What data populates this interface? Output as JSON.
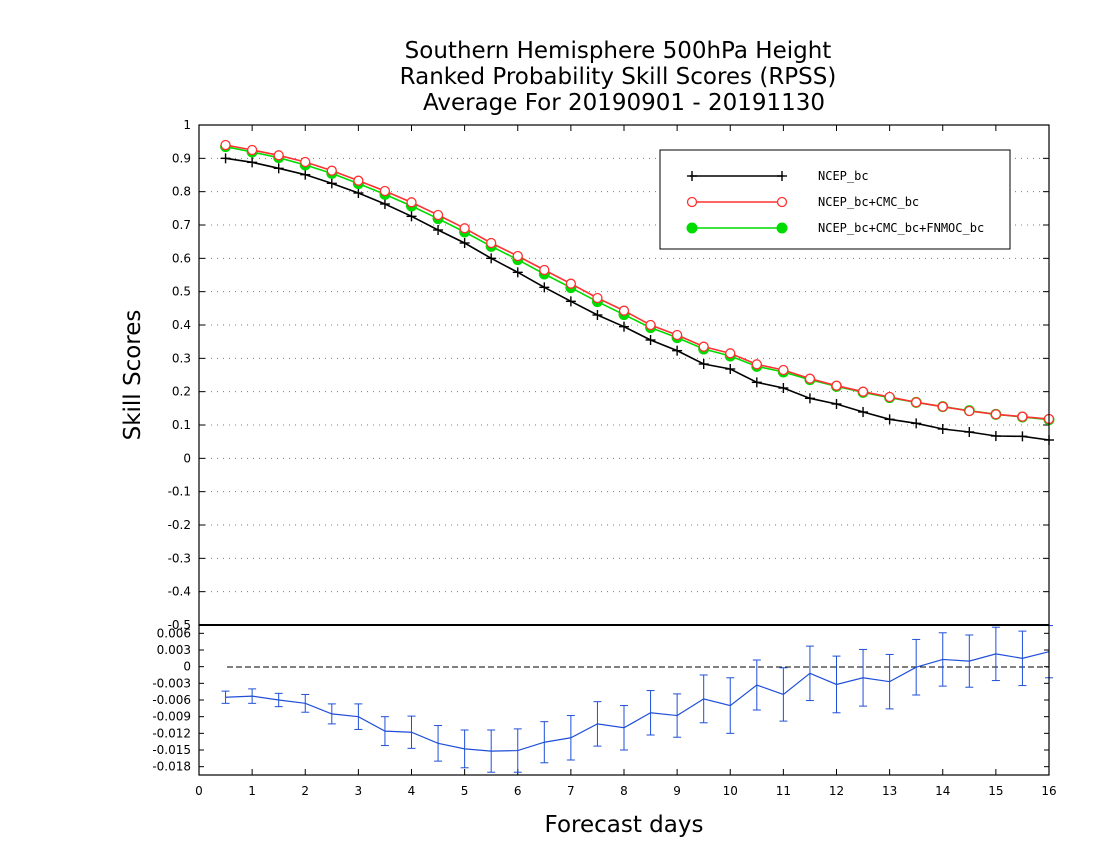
{
  "chart_data": [
    {
      "panel": "main",
      "type": "line",
      "title_lines": [
        "Southern Hemisphere 500hPa Height",
        "Ranked Probability Skill Scores (RPSS)",
        "Average For 20190901 - 20191130"
      ],
      "xlabel": "Forecast days",
      "ylabel": "Skill Scores",
      "xlim": [
        0,
        16
      ],
      "ylim": [
        -0.5,
        1
      ],
      "x_ticks": [
        "0",
        "1",
        "2",
        "3",
        "4",
        "5",
        "6",
        "7",
        "8",
        "9",
        "10",
        "11",
        "12",
        "13",
        "14",
        "15",
        "16"
      ],
      "y_ticks": [
        "-0.5",
        "-0.4",
        "-0.3",
        "-0.2",
        "-0.1",
        "0",
        "0.1",
        "0.2",
        "0.3",
        "0.4",
        "0.5",
        "0.6",
        "0.7",
        "0.8",
        "0.9",
        "1"
      ],
      "grid": "horizontal dotted",
      "legend_position": "top-right",
      "x": [
        0.5,
        1,
        1.5,
        2,
        2.5,
        3,
        3.5,
        4,
        4.5,
        5,
        5.5,
        6,
        6.5,
        7,
        7.5,
        8,
        8.5,
        9,
        9.5,
        10,
        10.5,
        11,
        11.5,
        12,
        12.5,
        13,
        13.5,
        14,
        14.5,
        15,
        15.5,
        16
      ],
      "series": [
        {
          "name": "NCEP_bc",
          "color": "#000000",
          "marker": "plus",
          "values": [
            0.9,
            0.888,
            0.87,
            0.851,
            0.825,
            0.796,
            0.763,
            0.726,
            0.685,
            0.646,
            0.6,
            0.558,
            0.513,
            0.471,
            0.43,
            0.395,
            0.355,
            0.323,
            0.283,
            0.268,
            0.228,
            0.211,
            0.18,
            0.163,
            0.139,
            0.117,
            0.105,
            0.088,
            0.079,
            0.067,
            0.066,
            0.055
          ]
        },
        {
          "name": "NCEP_bc+CMC_bc",
          "color": "#ff3030",
          "marker": "open-circle",
          "values": [
            0.94,
            0.925,
            0.909,
            0.889,
            0.863,
            0.833,
            0.802,
            0.768,
            0.73,
            0.69,
            0.646,
            0.607,
            0.565,
            0.524,
            0.481,
            0.443,
            0.4,
            0.37,
            0.335,
            0.315,
            0.282,
            0.265,
            0.239,
            0.218,
            0.2,
            0.184,
            0.168,
            0.155,
            0.142,
            0.132,
            0.125,
            0.118
          ]
        },
        {
          "name": "NCEP_bc+CMC_bc+FNMOC_bc",
          "color": "#00dc00",
          "marker": "filled-circle",
          "values": [
            0.935,
            0.919,
            0.902,
            0.88,
            0.855,
            0.824,
            0.792,
            0.757,
            0.719,
            0.679,
            0.636,
            0.596,
            0.553,
            0.512,
            0.47,
            0.431,
            0.392,
            0.362,
            0.328,
            0.307,
            0.276,
            0.259,
            0.236,
            0.216,
            0.198,
            0.182,
            0.168,
            0.155,
            0.143,
            0.132,
            0.124,
            0.116
          ]
        }
      ]
    },
    {
      "panel": "difference",
      "type": "line",
      "xlim": [
        0,
        16
      ],
      "ylim": [
        -0.0195,
        0.0075
      ],
      "y_ticks": [
        "-0.018",
        "-0.015",
        "-0.012",
        "-0.009",
        "-0.006",
        "-0.003",
        "0",
        "0.003",
        "0.006"
      ],
      "color": "#1f4fd8",
      "errorbars": true,
      "zero_line": "dashed",
      "x": [
        0.5,
        1,
        1.5,
        2,
        2.5,
        3,
        3.5,
        4,
        4.5,
        5,
        5.5,
        6,
        6.5,
        7,
        7.5,
        8,
        8.5,
        9,
        9.5,
        10,
        10.5,
        11,
        11.5,
        12,
        12.5,
        13,
        13.5,
        14,
        14.5,
        15,
        15.5,
        16
      ],
      "values": [
        -0.0055,
        -0.0053,
        -0.006,
        -0.0066,
        -0.0085,
        -0.009,
        -0.0116,
        -0.0118,
        -0.0138,
        -0.0148,
        -0.0152,
        -0.0151,
        -0.0136,
        -0.0128,
        -0.0103,
        -0.011,
        -0.0083,
        -0.0088,
        -0.0058,
        -0.007,
        -0.0033,
        -0.005,
        -0.0012,
        -0.0032,
        -0.002,
        -0.0027,
        -0.0001,
        0.0013,
        0.001,
        0.0023,
        0.0015,
        0.0027
      ],
      "err_low": [
        -0.0066,
        -0.0066,
        -0.0072,
        -0.0082,
        -0.0103,
        -0.0113,
        -0.0142,
        -0.0147,
        -0.017,
        -0.0182,
        -0.019,
        -0.019,
        -0.0173,
        -0.0168,
        -0.0143,
        -0.015,
        -0.0123,
        -0.0127,
        -0.0101,
        -0.012,
        -0.0078,
        -0.0098,
        -0.0061,
        -0.0083,
        -0.0071,
        -0.0076,
        -0.0051,
        -0.0035,
        -0.0037,
        -0.0025,
        -0.0034,
        -0.002
      ],
      "err_high": [
        -0.0044,
        -0.004,
        -0.0048,
        -0.005,
        -0.0067,
        -0.0067,
        -0.009,
        -0.0089,
        -0.0106,
        -0.0114,
        -0.0114,
        -0.0112,
        -0.0099,
        -0.0088,
        -0.0063,
        -0.007,
        -0.0043,
        -0.0049,
        -0.0015,
        -0.002,
        0.0012,
        -0.0002,
        0.0037,
        0.0019,
        0.0031,
        0.0022,
        0.0049,
        0.0061,
        0.0057,
        0.0071,
        0.0064,
        0.0074
      ]
    }
  ]
}
